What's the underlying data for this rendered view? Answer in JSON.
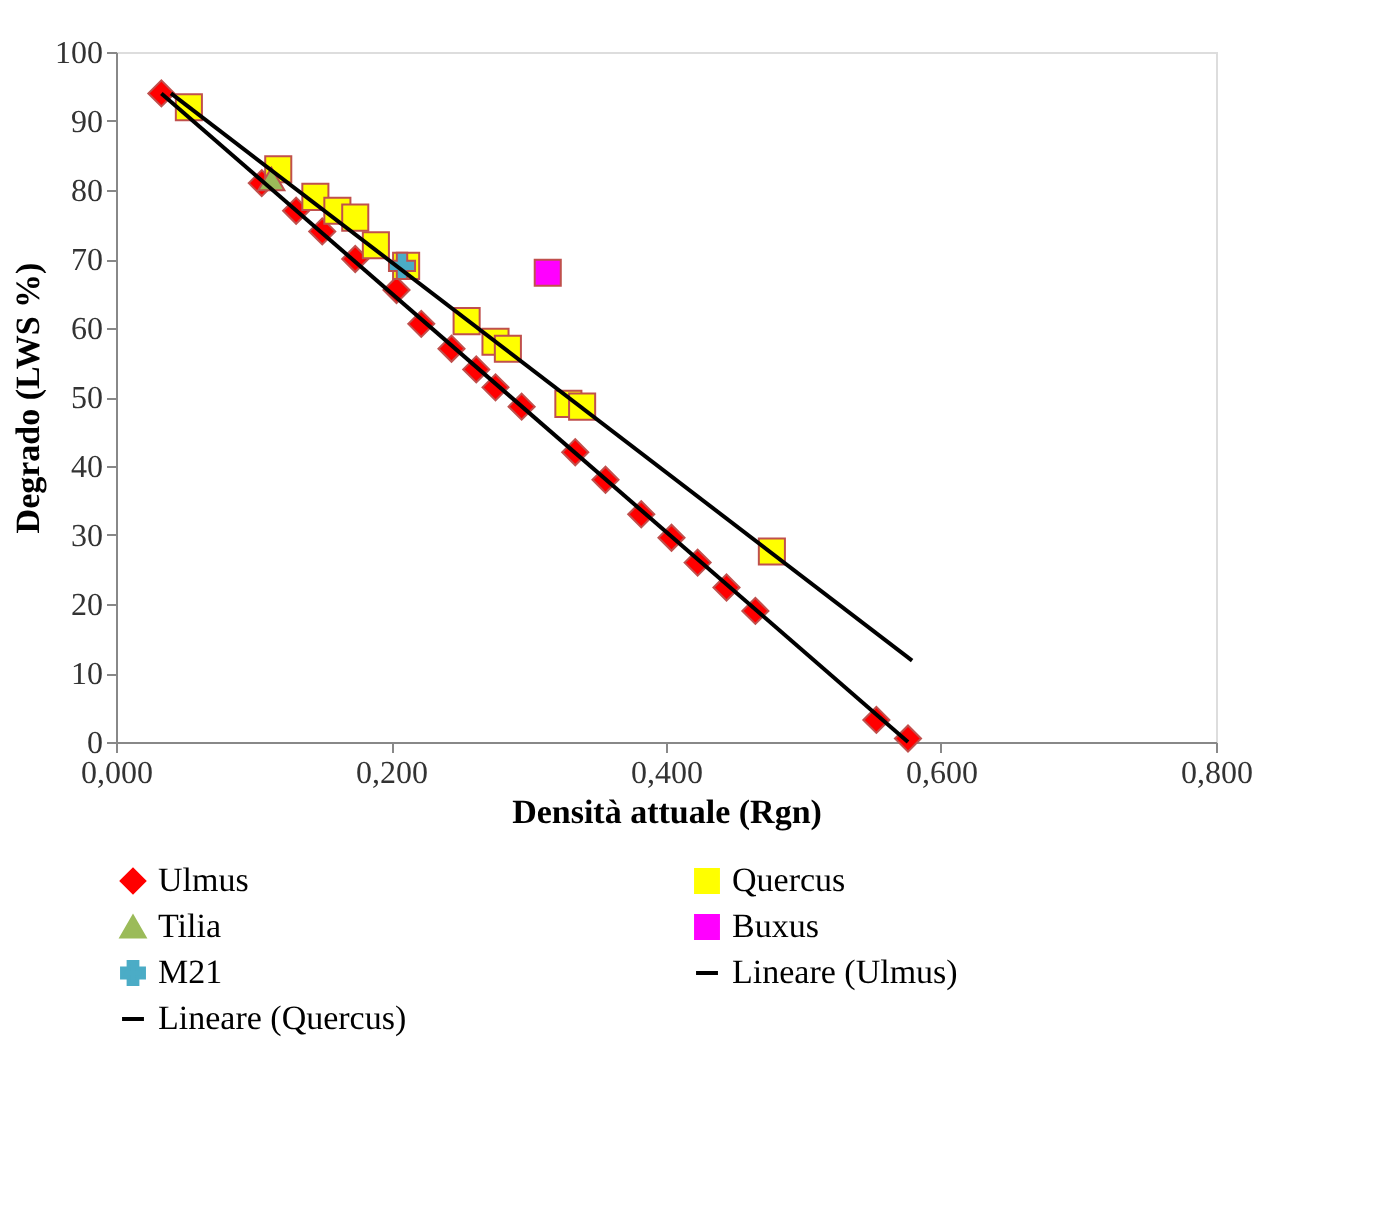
{
  "chart_data": {
    "type": "scatter",
    "xlabel": "Densità attuale (Rgn)",
    "ylabel": "Degrado (LWS %)",
    "xlim": [
      0,
      0.8
    ],
    "ylim": [
      0,
      100
    ],
    "xticks": [
      {
        "value": 0,
        "label": "0,000"
      },
      {
        "value": 0.2,
        "label": "0,200"
      },
      {
        "value": 0.4,
        "label": "0,400"
      },
      {
        "value": 0.6,
        "label": "0,600"
      },
      {
        "value": 0.8,
        "label": "0,800"
      }
    ],
    "yticks": [
      0,
      10,
      20,
      30,
      40,
      50,
      60,
      70,
      80,
      90,
      100
    ],
    "grid": false,
    "legend": "bottom",
    "series": [
      {
        "name": "Ulmus",
        "marker": "diamond",
        "color": "#ff0000",
        "x": [
          0.033,
          0.106,
          0.131,
          0.15,
          0.174,
          0.204,
          0.222,
          0.244,
          0.262,
          0.276,
          0.295,
          0.334,
          0.356,
          0.382,
          0.404,
          0.423,
          0.444,
          0.465,
          0.553,
          0.576
        ],
        "values": [
          94,
          81,
          77,
          74,
          70,
          65.5,
          60.6,
          57,
          54,
          51.4,
          48.6,
          42,
          38,
          33,
          29.6,
          26,
          22.4,
          19,
          3.2,
          0.5
        ]
      },
      {
        "name": "Quercus",
        "marker": "square",
        "color": "#ffff00",
        "x": [
          0.053,
          0.118,
          0.145,
          0.161,
          0.174,
          0.189,
          0.211,
          0.255,
          0.276,
          0.285,
          0.329,
          0.339,
          0.477
        ],
        "values": [
          92,
          83,
          79,
          77,
          76,
          72,
          69,
          61,
          58,
          57,
          49,
          48.6,
          27.6
        ]
      },
      {
        "name": "Tilia",
        "marker": "triangle",
        "color": "#9bbb59",
        "x": [
          0.113
        ],
        "values": [
          81.6
        ]
      },
      {
        "name": "Buxus",
        "marker": "square",
        "color": "#ff00ff",
        "x": [
          0.314
        ],
        "values": [
          68
        ]
      },
      {
        "name": "M21",
        "marker": "cross",
        "color": "#4bacc6",
        "x": [
          0.208
        ],
        "values": [
          69
        ]
      },
      {
        "name": "Lineare (Ulmus)",
        "type": "line",
        "marker": "none",
        "color": "#000000",
        "x": [
          0.033,
          0.576
        ],
        "values": [
          94,
          0
        ]
      },
      {
        "name": "Lineare (Quercus)",
        "type": "line",
        "marker": "none",
        "color": "#000000",
        "x": [
          0.04,
          0.579
        ],
        "values": [
          94,
          11.8
        ]
      }
    ]
  }
}
